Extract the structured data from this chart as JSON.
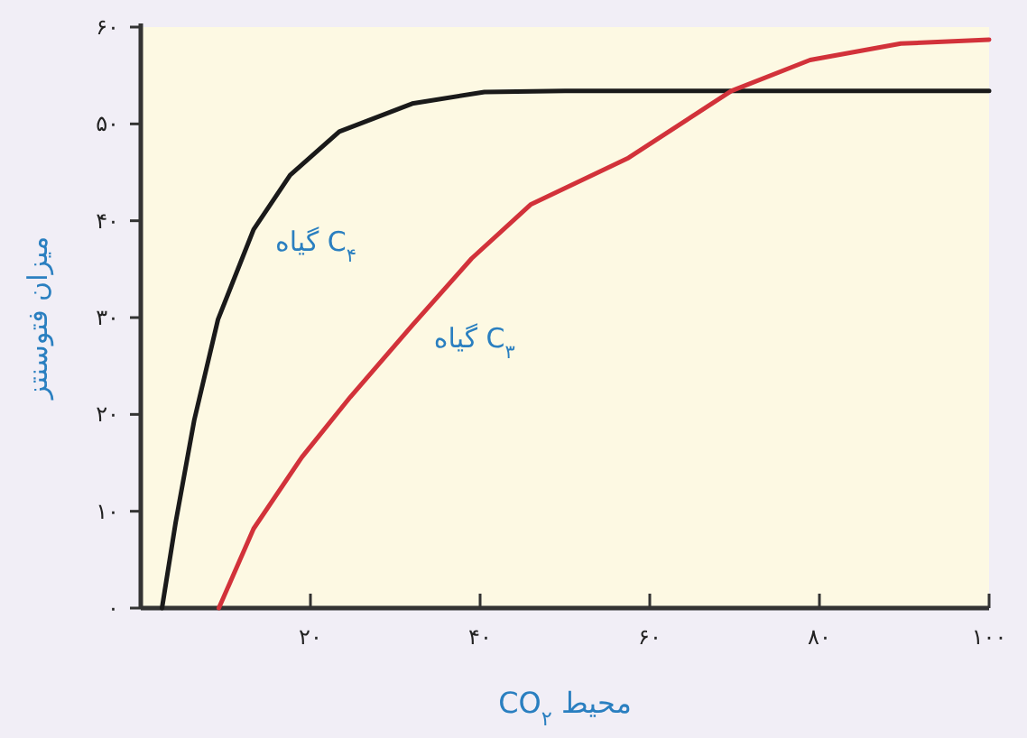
{
  "chart_data": {
    "type": "line",
    "xlabel": "CO$_{۲}$ محیط",
    "ylabel": "میزان فتوسنتز",
    "xlim": [
      0,
      100
    ],
    "ylim": [
      0,
      60
    ],
    "xticks": [
      {
        "value": 20,
        "label": "۲۰"
      },
      {
        "value": 40,
        "label": "۴۰"
      },
      {
        "value": 60,
        "label": "۶۰"
      },
      {
        "value": 80,
        "label": "۸۰"
      },
      {
        "value": 100,
        "label": "۱۰۰"
      }
    ],
    "yticks": [
      {
        "value": 0,
        "label": "۰"
      },
      {
        "value": 10,
        "label": "۱۰"
      },
      {
        "value": 20,
        "label": "۲۰"
      },
      {
        "value": 30,
        "label": "۳۰"
      },
      {
        "value": 40,
        "label": "۴۰"
      },
      {
        "value": 50,
        "label": "۵۰"
      },
      {
        "value": 60,
        "label": "۶۰"
      }
    ],
    "grid": false,
    "marker": "none",
    "line_style": "solid",
    "series": [
      {
        "name": "گیاه C$_{۴}$",
        "color": "#1a1a1a",
        "x": [
          2.5,
          4.1,
          6.3,
          9.1,
          13.3,
          17.6,
          23.4,
          32,
          40.5,
          50,
          60,
          80,
          100
        ],
        "values": [
          0,
          8.8,
          19.4,
          29.8,
          39.1,
          44.7,
          49.2,
          52.1,
          53.3,
          53.4,
          53.4,
          53.4,
          53.4
        ]
      },
      {
        "name": "گیاه C$_{۳}$",
        "color": "#d2323a",
        "x": [
          9.2,
          13.3,
          19,
          24.7,
          32,
          39,
          46,
          57.5,
          69.6,
          78.9,
          89.6,
          100
        ],
        "values": [
          0,
          8.2,
          15.6,
          21.8,
          29.2,
          36.1,
          41.7,
          46.5,
          53.4,
          56.6,
          58.3,
          58.7
        ]
      }
    ]
  }
}
